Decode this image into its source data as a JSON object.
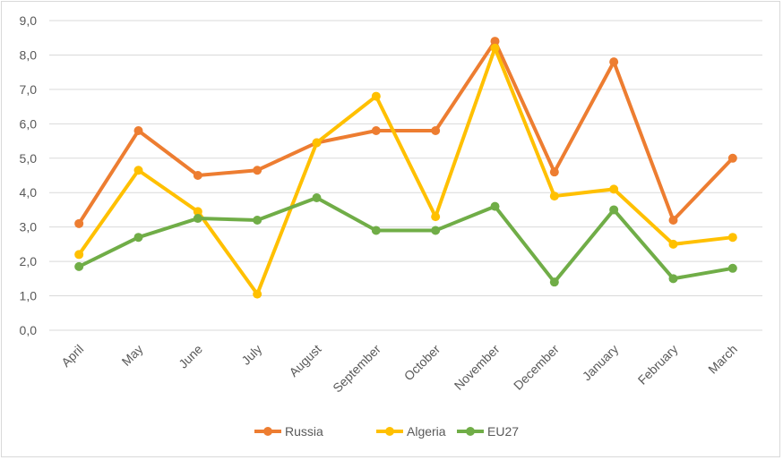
{
  "chart_data": {
    "type": "line",
    "title": "",
    "xlabel": "",
    "ylabel": "",
    "categories": [
      "April",
      "May",
      "June",
      "July",
      "August",
      "September",
      "October",
      "November",
      "December",
      "January",
      "February",
      "March"
    ],
    "ylim": [
      0,
      9
    ],
    "ytick_labels": [
      "0,0",
      "1,0",
      "2,0",
      "3,0",
      "4,0",
      "5,0",
      "6,0",
      "7,0",
      "8,0",
      "9,0"
    ],
    "grid": "horizontal",
    "legend_position": "bottom",
    "series": [
      {
        "name": "Russia",
        "color": "#ED7D31",
        "values": [
          3.1,
          5.8,
          4.5,
          4.65,
          5.45,
          5.8,
          5.8,
          8.4,
          4.6,
          7.8,
          3.2,
          5.0
        ]
      },
      {
        "name": "Algeria",
        "color": "#FFC000",
        "values": [
          2.2,
          4.65,
          3.45,
          1.05,
          5.45,
          6.8,
          3.3,
          8.2,
          3.9,
          4.1,
          2.5,
          2.7
        ]
      },
      {
        "name": "EU27",
        "color": "#70AD47",
        "values": [
          1.85,
          2.7,
          3.25,
          3.2,
          3.85,
          2.9,
          2.9,
          3.6,
          1.4,
          3.5,
          1.5,
          1.8
        ]
      }
    ]
  }
}
